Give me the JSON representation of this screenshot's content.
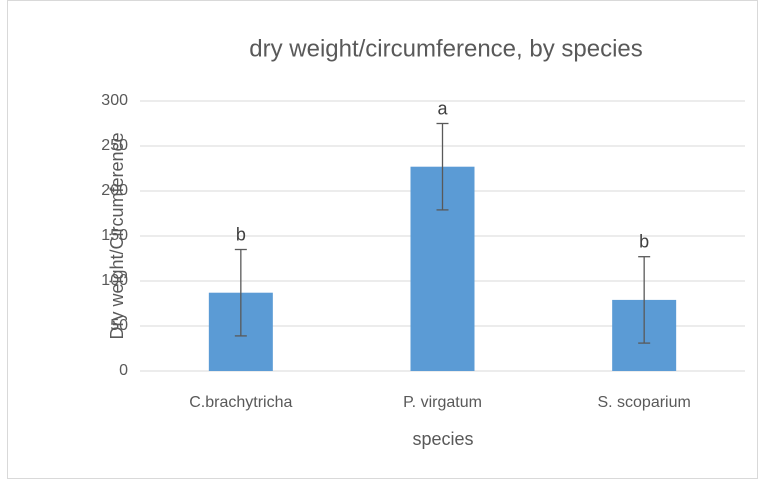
{
  "chart_data": {
    "type": "bar",
    "title": "dry weight/circumference, by species",
    "x_label": "species",
    "y_label": "Dry weight/Circumference",
    "categories": [
      "C.brachytricha",
      "P. virgatum",
      "S. scoparium"
    ],
    "values": [
      87,
      227,
      79
    ],
    "errors": [
      48,
      48,
      48
    ],
    "annotations": [
      "b",
      "a",
      "b"
    ],
    "color": "#5b9bd5",
    "ylim": [
      0,
      300
    ],
    "yticks": [
      0,
      50,
      100,
      150,
      200,
      250,
      300
    ],
    "grid": true
  }
}
